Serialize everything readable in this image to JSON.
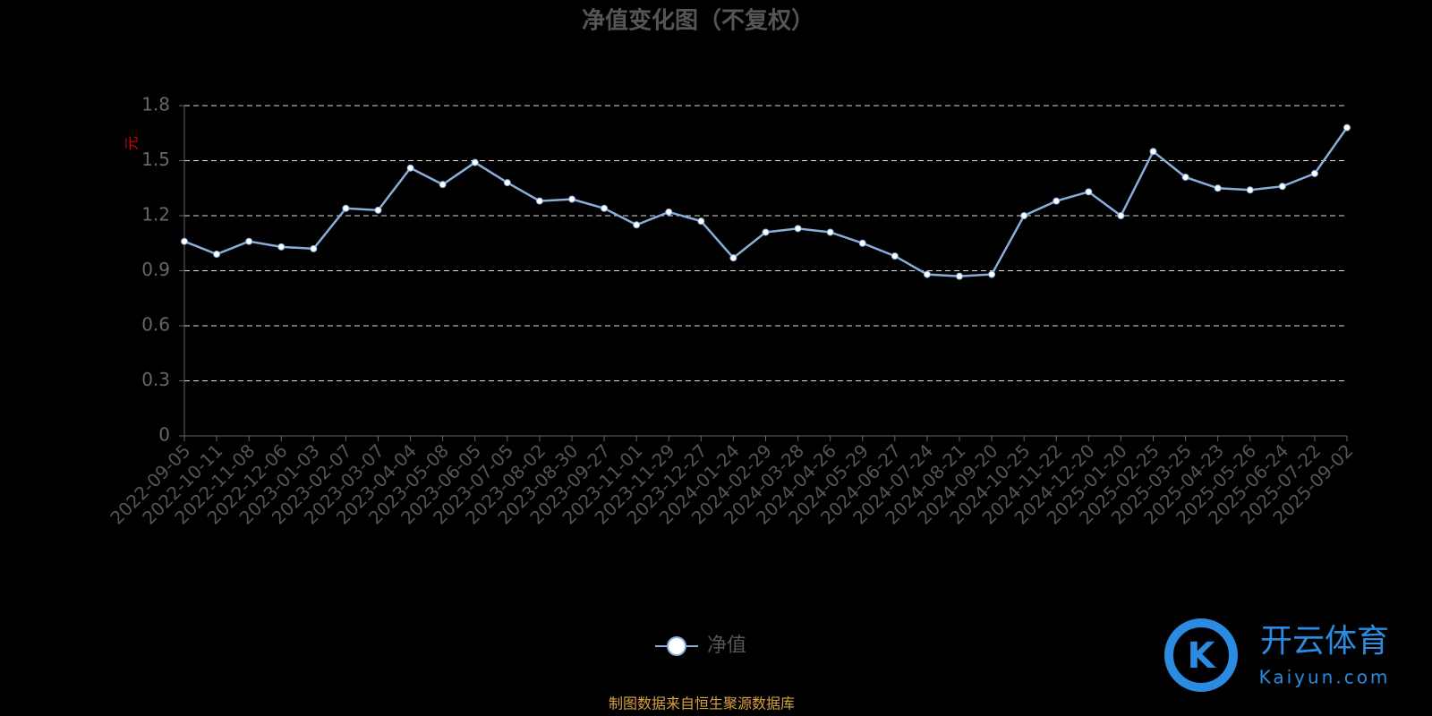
{
  "chart_data": {
    "type": "line",
    "title": "净值变化图（不复权）",
    "y_label": "元",
    "categories": [
      "2022-09-05",
      "2022-10-11",
      "2022-11-08",
      "2022-12-06",
      "2023-01-03",
      "2023-02-07",
      "2023-03-07",
      "2023-04-04",
      "2023-05-08",
      "2023-06-05",
      "2023-07-05",
      "2023-08-02",
      "2023-08-30",
      "2023-09-27",
      "2023-11-01",
      "2023-11-29",
      "2023-12-27",
      "2024-01-24",
      "2024-02-29",
      "2024-03-28",
      "2024-04-26",
      "2024-05-29",
      "2024-06-27",
      "2024-07-24",
      "2024-08-21",
      "2024-09-20",
      "2024-10-25",
      "2024-11-22",
      "2024-12-20",
      "2025-01-20",
      "2025-02-25",
      "2025-03-25",
      "2025-04-23",
      "2025-05-26",
      "2025-06-24",
      "2025-07-22",
      "2025-09-02"
    ],
    "series": [
      {
        "name": "净值",
        "color": "#8aaedc",
        "values": [
          1.06,
          0.99,
          1.06,
          1.03,
          1.02,
          1.24,
          1.23,
          1.46,
          1.37,
          1.49,
          1.38,
          1.28,
          1.29,
          1.24,
          1.15,
          1.22,
          1.17,
          0.97,
          1.11,
          1.13,
          1.11,
          1.05,
          0.98,
          0.88,
          0.87,
          0.88,
          1.2,
          1.28,
          1.33,
          1.2,
          1.55,
          1.41,
          1.35,
          1.34,
          1.36,
          1.43,
          1.68
        ]
      }
    ],
    "ylim": [
      0,
      1.8
    ],
    "yticks": [
      0,
      0.3,
      0.6,
      0.9,
      1.2,
      1.5,
      1.8
    ],
    "grid": true,
    "legend": "bottom",
    "source": "制图数据来自恒生聚源数据库",
    "watermark": {
      "brand": "开云体育",
      "url": "Kaiyun.com"
    }
  }
}
